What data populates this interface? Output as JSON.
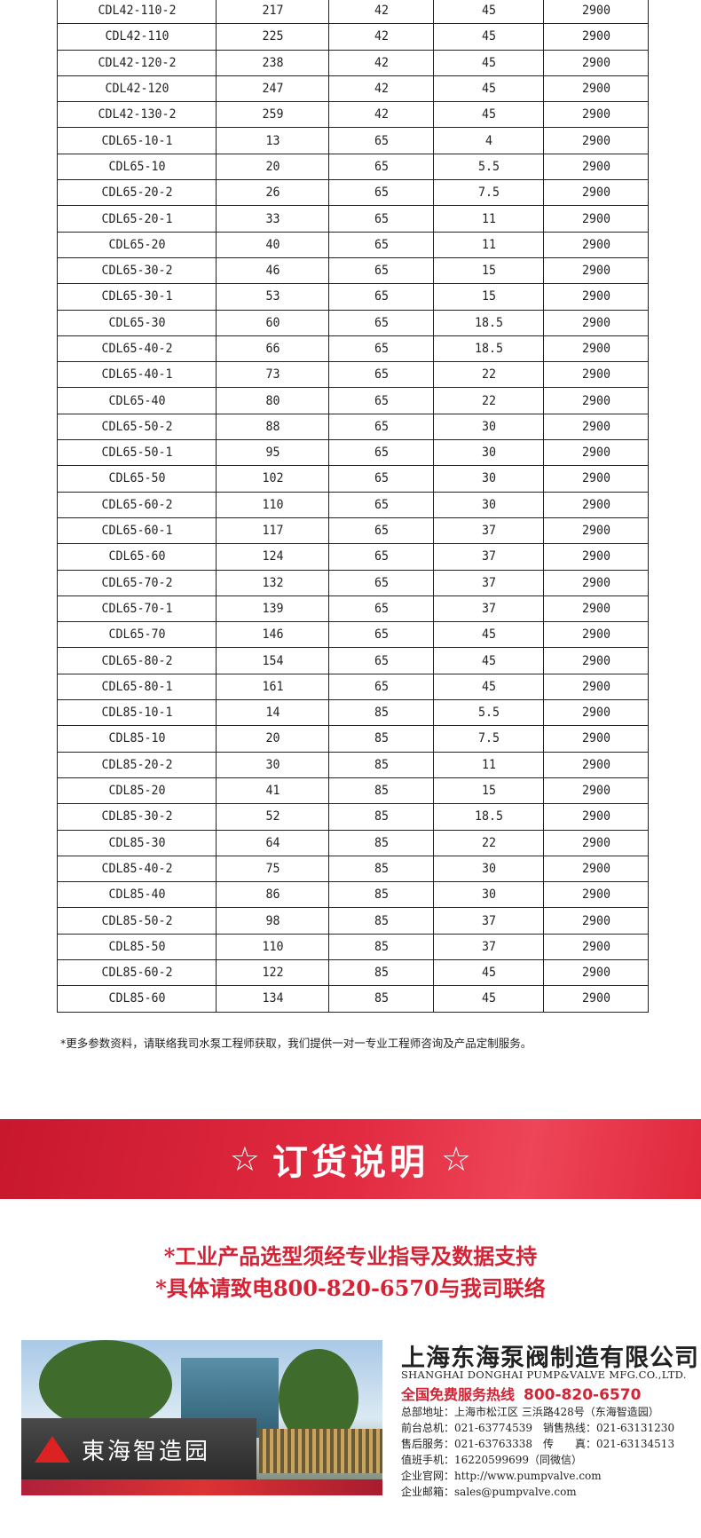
{
  "table": {
    "rows": [
      [
        "CDL42-110-2",
        "217",
        "42",
        "45",
        "2900"
      ],
      [
        "CDL42-110",
        "225",
        "42",
        "45",
        "2900"
      ],
      [
        "CDL42-120-2",
        "238",
        "42",
        "45",
        "2900"
      ],
      [
        "CDL42-120",
        "247",
        "42",
        "45",
        "2900"
      ],
      [
        "CDL42-130-2",
        "259",
        "42",
        "45",
        "2900"
      ],
      [
        "CDL65-10-1",
        "13",
        "65",
        "4",
        "2900"
      ],
      [
        "CDL65-10",
        "20",
        "65",
        "5.5",
        "2900"
      ],
      [
        "CDL65-20-2",
        "26",
        "65",
        "7.5",
        "2900"
      ],
      [
        "CDL65-20-1",
        "33",
        "65",
        "11",
        "2900"
      ],
      [
        "CDL65-20",
        "40",
        "65",
        "11",
        "2900"
      ],
      [
        "CDL65-30-2",
        "46",
        "65",
        "15",
        "2900"
      ],
      [
        "CDL65-30-1",
        "53",
        "65",
        "15",
        "2900"
      ],
      [
        "CDL65-30",
        "60",
        "65",
        "18.5",
        "2900"
      ],
      [
        "CDL65-40-2",
        "66",
        "65",
        "18.5",
        "2900"
      ],
      [
        "CDL65-40-1",
        "73",
        "65",
        "22",
        "2900"
      ],
      [
        "CDL65-40",
        "80",
        "65",
        "22",
        "2900"
      ],
      [
        "CDL65-50-2",
        "88",
        "65",
        "30",
        "2900"
      ],
      [
        "CDL65-50-1",
        "95",
        "65",
        "30",
        "2900"
      ],
      [
        "CDL65-50",
        "102",
        "65",
        "30",
        "2900"
      ],
      [
        "CDL65-60-2",
        "110",
        "65",
        "30",
        "2900"
      ],
      [
        "CDL65-60-1",
        "117",
        "65",
        "37",
        "2900"
      ],
      [
        "CDL65-60",
        "124",
        "65",
        "37",
        "2900"
      ],
      [
        "CDL65-70-2",
        "132",
        "65",
        "37",
        "2900"
      ],
      [
        "CDL65-70-1",
        "139",
        "65",
        "37",
        "2900"
      ],
      [
        "CDL65-70",
        "146",
        "65",
        "45",
        "2900"
      ],
      [
        "CDL65-80-2",
        "154",
        "65",
        "45",
        "2900"
      ],
      [
        "CDL65-80-1",
        "161",
        "65",
        "45",
        "2900"
      ],
      [
        "CDL85-10-1",
        "14",
        "85",
        "5.5",
        "2900"
      ],
      [
        "CDL85-10",
        "20",
        "85",
        "7.5",
        "2900"
      ],
      [
        "CDL85-20-2",
        "30",
        "85",
        "11",
        "2900"
      ],
      [
        "CDL85-20",
        "41",
        "85",
        "15",
        "2900"
      ],
      [
        "CDL85-30-2",
        "52",
        "85",
        "18.5",
        "2900"
      ],
      [
        "CDL85-30",
        "64",
        "85",
        "22",
        "2900"
      ],
      [
        "CDL85-40-2",
        "75",
        "85",
        "30",
        "2900"
      ],
      [
        "CDL85-40",
        "86",
        "85",
        "30",
        "2900"
      ],
      [
        "CDL85-50-2",
        "98",
        "85",
        "37",
        "2900"
      ],
      [
        "CDL85-50",
        "110",
        "85",
        "37",
        "2900"
      ],
      [
        "CDL85-60-2",
        "122",
        "85",
        "45",
        "2900"
      ],
      [
        "CDL85-60",
        "134",
        "85",
        "45",
        "2900"
      ]
    ]
  },
  "note": "*更多参数资料，请联络我司水泵工程师获取，我们提供一对一专业工程师咨询及产品定制服务。",
  "banner": {
    "star": "☆",
    "title": "订货说明"
  },
  "order_lines": [
    "*工业产品选型须经专业指导及数据支持",
    "*具体请致电800-820-6570与我司联络"
  ],
  "photo": {
    "sign_text": "東海智造园"
  },
  "company": {
    "name_cn": "上海东海泵阀制造有限公司",
    "name_en": "SHANGHAI DONGHAI PUMP&VALVE MFG.CO.,LTD.",
    "hotline_label": "全国免费服务热线",
    "hotline": "800-820-6570",
    "lines": [
      "总部地址：上海市松江区 三浜路428号（东海智造园）",
      "前台总机：021-63774539　销售热线：021-63131230",
      "售后服务：021-63763338　传　　真：021-63134513",
      "值班手机：16220599699（同微信）",
      "企业官网：http://www.pumpvalve.com",
      "企业邮箱：sales@pumpvalve.com"
    ]
  },
  "colors": {
    "accent_red": "#d42335"
  }
}
